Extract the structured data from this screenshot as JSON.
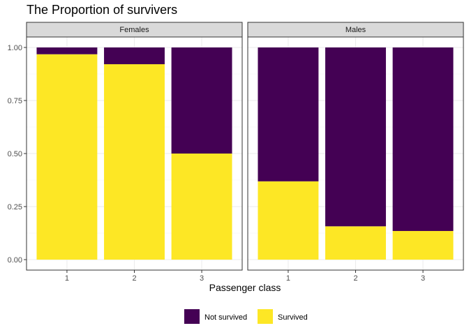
{
  "chart_data": {
    "type": "bar",
    "stacked": true,
    "title": "The Proportion of survivers",
    "xlabel": "Passenger class",
    "ylabel": "",
    "ylim": [
      0,
      1
    ],
    "yticks": [
      "0.00",
      "0.25",
      "0.50",
      "0.75",
      "1.00"
    ],
    "categories": [
      "1",
      "2",
      "3"
    ],
    "grid": true,
    "legend_position": "bottom",
    "colors": {
      "Not survived": "#440154",
      "Survived": "#FDE725"
    },
    "panels": [
      {
        "name": "Females",
        "series": [
          {
            "name": "Survived",
            "values": [
              0.968,
              0.921,
              0.5
            ]
          },
          {
            "name": "Not survived",
            "values": [
              0.032,
              0.079,
              0.5
            ]
          }
        ]
      },
      {
        "name": "Males",
        "series": [
          {
            "name": "Survived",
            "values": [
              0.369,
              0.157,
              0.135
            ]
          },
          {
            "name": "Not survived",
            "values": [
              0.631,
              0.843,
              0.865
            ]
          }
        ]
      }
    ],
    "legend": [
      "Not survived",
      "Survived"
    ]
  }
}
